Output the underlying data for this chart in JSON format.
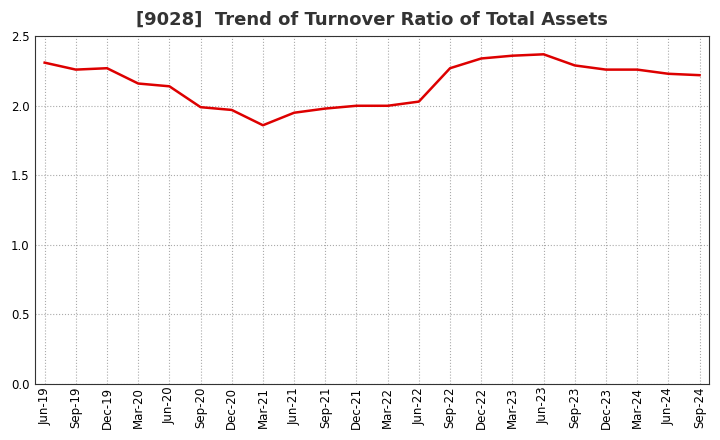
{
  "title": "[9028]  Trend of Turnover Ratio of Total Assets",
  "labels": [
    "Jun-19",
    "Sep-19",
    "Dec-19",
    "Mar-20",
    "Jun-20",
    "Sep-20",
    "Dec-20",
    "Mar-21",
    "Jun-21",
    "Sep-21",
    "Dec-21",
    "Mar-22",
    "Jun-22",
    "Sep-22",
    "Dec-22",
    "Mar-23",
    "Jun-23",
    "Sep-23",
    "Dec-23",
    "Mar-24",
    "Jun-24",
    "Sep-24"
  ],
  "values": [
    2.31,
    2.26,
    2.27,
    2.16,
    2.14,
    1.99,
    1.97,
    1.86,
    1.95,
    1.98,
    2.0,
    2.0,
    2.03,
    2.27,
    2.34,
    2.36,
    2.37,
    2.29,
    2.26,
    2.26,
    2.23,
    2.22
  ],
  "ylim": [
    0.0,
    2.5
  ],
  "yticks": [
    0.0,
    0.5,
    1.0,
    1.5,
    2.0,
    2.5
  ],
  "line_color": "#dd0000",
  "line_width": 1.8,
  "bg_color": "#ffffff",
  "plot_bg_color": "#ffffff",
  "grid_color": "#aaaaaa",
  "title_fontsize": 13,
  "tick_fontsize": 8.5,
  "title_color": "#333333",
  "title_loc": "center"
}
